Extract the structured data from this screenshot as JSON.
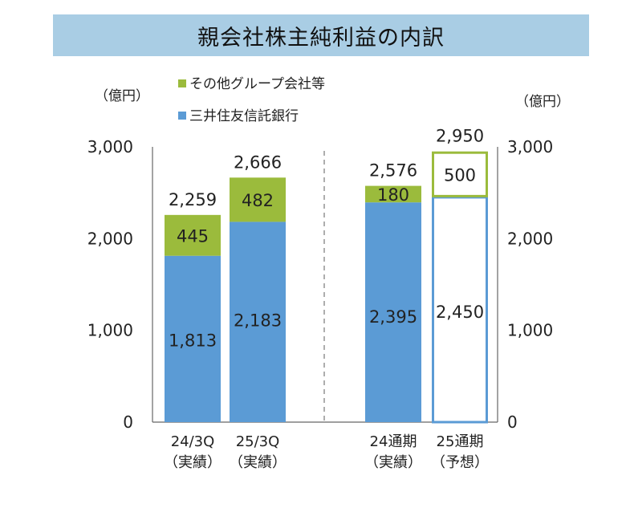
{
  "chart_data": {
    "type": "bar",
    "stacked": true,
    "title": "親会社株主純利益の内訳",
    "unit_label_left": "（億円）",
    "unit_label_right": "（億円）",
    "ylim": [
      0,
      3000
    ],
    "yticks": [
      "0",
      "1,000",
      "2,000",
      "3,000"
    ],
    "categories": [
      {
        "line1": "24/3Q",
        "line2": "（実績）"
      },
      {
        "line1": "25/3Q",
        "line2": "（実績）"
      },
      {
        "line1": "24通期",
        "line2": "（実績）"
      },
      {
        "line1": "25通期",
        "line2": "（予想）"
      }
    ],
    "series": [
      {
        "name": "三井住友信託銀行",
        "color": "#5b9bd5",
        "values": [
          1813,
          2183,
          2395,
          2450
        ],
        "labels": [
          "1,813",
          "2,183",
          "2,395",
          "2,450"
        ],
        "style": [
          "solid",
          "solid",
          "solid",
          "outline"
        ]
      },
      {
        "name": "その他グループ会社等",
        "color": "#9bbb3c",
        "values": [
          445,
          482,
          180,
          500
        ],
        "labels": [
          "445",
          "482",
          "180",
          "500"
        ],
        "style": [
          "solid",
          "solid",
          "solid",
          "outline"
        ]
      }
    ],
    "totals": [
      2259,
      2666,
      2576,
      2950
    ],
    "total_labels": [
      "2,259",
      "2,666",
      "2,576",
      "2,950"
    ],
    "legend_position": "top-left",
    "grid": false
  }
}
